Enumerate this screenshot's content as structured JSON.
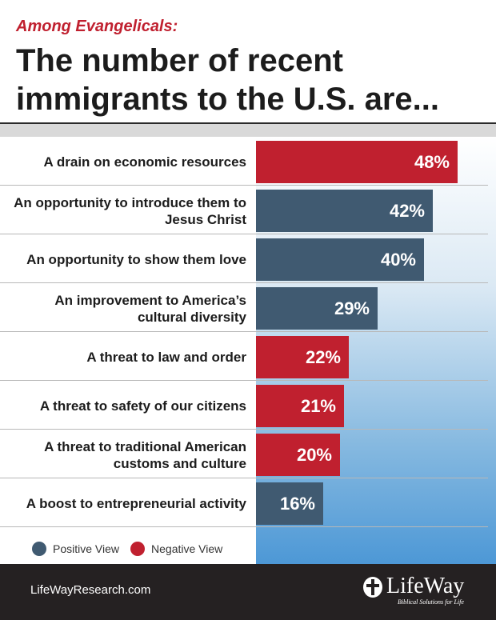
{
  "header": {
    "subtitle": "Among Evangelicals:",
    "title": "The number of recent immigrants to the U.S. are..."
  },
  "colors": {
    "positive": "#405a71",
    "negative": "#c0202f"
  },
  "legend": {
    "positive": "Positive View",
    "negative": "Negative View"
  },
  "chart_data": {
    "type": "bar",
    "orientation": "horizontal",
    "title": "The number of recent immigrants to the U.S. are...",
    "subtitle": "Among Evangelicals:",
    "unit": "%",
    "xlim": [
      0,
      55
    ],
    "categories": [
      "A drain on economic resources",
      "An opportunity to introduce them to Jesus Christ",
      "An opportunity to show them love",
      "An improvement to America’s cultural diversity",
      "A threat to law and order",
      "A threat to safety of our citizens",
      "A threat to traditional American customs and culture",
      "A boost to entrepreneurial activity"
    ],
    "values": [
      48,
      42,
      40,
      29,
      22,
      21,
      20,
      16
    ],
    "labels": [
      "48%",
      "42%",
      "40%",
      "29%",
      "22%",
      "21%",
      "20%",
      "16%"
    ],
    "view": [
      "negative",
      "positive",
      "positive",
      "positive",
      "negative",
      "negative",
      "negative",
      "positive"
    ],
    "legend": [
      "Positive View",
      "Negative View"
    ]
  },
  "footer": {
    "site": "LifeWayResearch.com",
    "logo_text": "LifeWay",
    "logo_tagline": "Biblical Solutions for Life"
  }
}
